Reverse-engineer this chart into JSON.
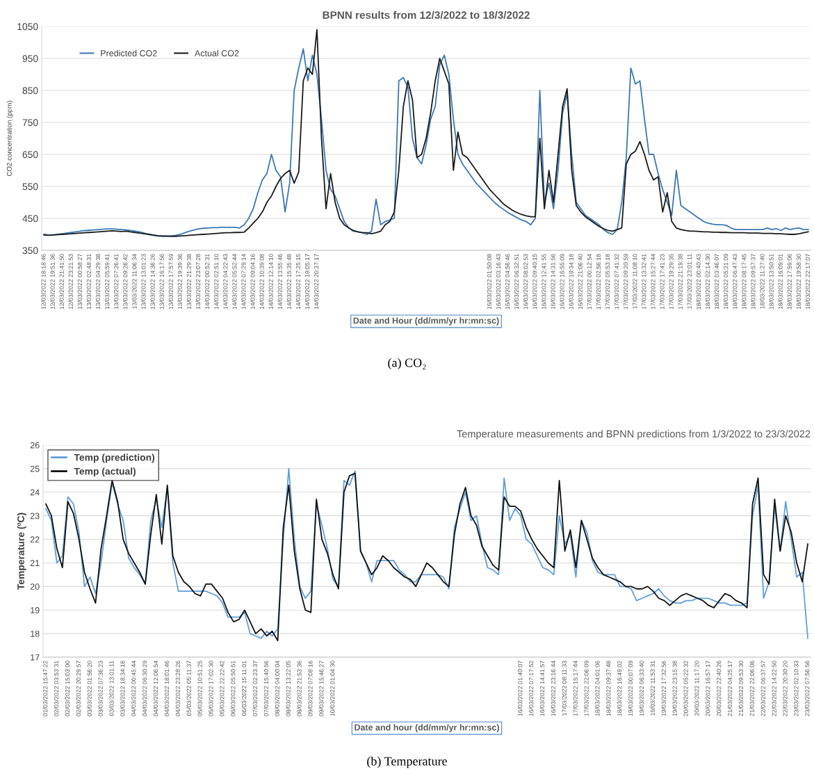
{
  "chart_data": [
    {
      "type": "line",
      "title": "BPNN results from 12/3/2022 to 18/3/2022",
      "xlabel": "Date and Hour (dd/mm/yr hr:mn:sc)",
      "ylabel": "CO2 concentration (ppm)",
      "categories": [
        "12/03/2022 18:18:46",
        null,
        "12/03/2022 19:51:36",
        null,
        "12/03/2022 21:41:50",
        null,
        "12/03/2022 23:21:53",
        null,
        "13/03/2022 00:58:27",
        null,
        "13/03/2022 02:48:31",
        null,
        "13/03/2022 04:29:38",
        null,
        "13/03/2022 05:59:41",
        null,
        "13/03/2022 07:26:41",
        null,
        "13/03/2022 09:26:42",
        null,
        "13/03/2022 11:06:34",
        null,
        "13/03/2022 13:01:23",
        null,
        "13/03/2022 14:36:26",
        null,
        "13/03/2022 16:17:56",
        null,
        "13/03/2022 17:57:59",
        null,
        "13/03/2022 19:39:36",
        null,
        "13/03/2022 21:29:38",
        null,
        "13/03/2022 23:07:28",
        null,
        "14/03/2022 00:52:31",
        null,
        "14/03/2022 02:51:10",
        null,
        "14/03/2022 04:22:43",
        null,
        "14/03/2022 05:52:44",
        null,
        "14/03/2022 07:29:14",
        null,
        "14/03/2022 09:04:16",
        null,
        "14/03/2022 10:39:08",
        null,
        "14/03/2022 12:14:10",
        null,
        "14/03/2022 13:55:46",
        null,
        "14/03/2022 15:35:48",
        null,
        "14/03/2022 17:25:15",
        null,
        "14/03/2022 19:05:17",
        null,
        "14/03/2022 20:37:17",
        null,
        null,
        null,
        null,
        null,
        null,
        null,
        null,
        null,
        null,
        null,
        null,
        null,
        null,
        null,
        null,
        null,
        null,
        null,
        null,
        null,
        null,
        null,
        null,
        null,
        null,
        null,
        null,
        null,
        null,
        null,
        null,
        null,
        null,
        null,
        null,
        null,
        "16/03/2022 01:50:08",
        null,
        "16/03/2022 03:16:43",
        null,
        "16/03/2022 04:56:46",
        null,
        "16/03/2022 06:32:51",
        null,
        "16/03/2022 08:02:53",
        null,
        "16/03/2022 09:40:15",
        null,
        "16/03/2022 12:41:55",
        null,
        "16/03/2022 14:31:56",
        null,
        "16/03/2022 16:55:09",
        null,
        "16/03/2022 19:34:18",
        null,
        "16/03/2022 21:06:40",
        null,
        "17/03/2022 00:12:54",
        null,
        "17/03/2022 02:56:18",
        null,
        "17/03/2022 05:53:18",
        null,
        "17/03/2022 07:41:32",
        null,
        "17/03/2022 09:20:59",
        null,
        "17/03/2022 11:08:10",
        null,
        "17/03/2022 13:32:41",
        null,
        "17/03/2022 15:27:44",
        null,
        "17/03/2022 17:41:23",
        null,
        "17/03/2022 19:29:35",
        null,
        "17/03/2022 21:19:38",
        null,
        "17/03/2022 23:01:11",
        null,
        "18/03/2022 00:40:43",
        null,
        "18/03/2022 02:14:30",
        null,
        "18/03/2022 03:46:07",
        null,
        "18/03/2022 05:21:09",
        null,
        "18/03/2022 06:47:43",
        null,
        "18/03/2022 08:17:45",
        null,
        "18/03/2022 09:57:37",
        null,
        "18/03/2022 11:27:40",
        null,
        "18/03/2022 13:50:51",
        null,
        "18/03/2022 16:09:01",
        null,
        "18/03/2022 17:59:06",
        null,
        "18/03/2022 19:58:30",
        null,
        "18/03/2022 22:17:07"
      ],
      "series": [
        {
          "name": "Predicted CO2",
          "color": "#3b78b5",
          "values": [
            400,
            398,
            398,
            400,
            402,
            404,
            406,
            408,
            410,
            412,
            413,
            414,
            415,
            416,
            417,
            417,
            416,
            415,
            414,
            412,
            410,
            408,
            404,
            400,
            397,
            395,
            394,
            394,
            395,
            397,
            400,
            405,
            410,
            414,
            417,
            419,
            420,
            421,
            421,
            422,
            422,
            422,
            422,
            420,
            430,
            450,
            480,
            530,
            570,
            590,
            650,
            600,
            580,
            470,
            560,
            850,
            920,
            980,
            880,
            960,
            900,
            760,
            600,
            540,
            520,
            480,
            440,
            420,
            410,
            408,
            405,
            400,
            410,
            510,
            430,
            440,
            445,
            450,
            880,
            890,
            860,
            700,
            640,
            620,
            680,
            760,
            800,
            930,
            960,
            900,
            760,
            650,
            620,
            600,
            580,
            560,
            545,
            530,
            515,
            500,
            488,
            478,
            468,
            460,
            452,
            445,
            440,
            430,
            450,
            850,
            500,
            560,
            480,
            600,
            780,
            840,
            650,
            500,
            480,
            460,
            450,
            440,
            430,
            415,
            405,
            400,
            415,
            500,
            640,
            920,
            870,
            880,
            760,
            650,
            650,
            590,
            540,
            500,
            460,
            600,
            490,
            480,
            470,
            460,
            450,
            440,
            435,
            432,
            430,
            430,
            428,
            420,
            415,
            415,
            415,
            415,
            415,
            415,
            415,
            420,
            415,
            418,
            412,
            420,
            415,
            418,
            420,
            415,
            415
          ]
        },
        {
          "name": "Actual CO2",
          "color": "#1a1a1a",
          "values": [
            398,
            397,
            398,
            399,
            400,
            401,
            402,
            403,
            404,
            405,
            406,
            407,
            408,
            409,
            410,
            411,
            410,
            409,
            410,
            408,
            406,
            404,
            402,
            400,
            398,
            396,
            395,
            395,
            394,
            394,
            395,
            396,
            397,
            398,
            399,
            400,
            401,
            402,
            403,
            404,
            405,
            405,
            406,
            406,
            407,
            420,
            435,
            450,
            470,
            500,
            520,
            550,
            575,
            590,
            600,
            560,
            595,
            880,
            920,
            900,
            1040,
            700,
            480,
            590,
            500,
            450,
            430,
            420,
            412,
            408,
            405,
            405,
            402,
            405,
            410,
            430,
            440,
            470,
            600,
            800,
            880,
            820,
            640,
            650,
            700,
            780,
            880,
            950,
            910,
            870,
            600,
            720,
            650,
            640,
            620,
            600,
            580,
            560,
            540,
            525,
            510,
            495,
            485,
            475,
            468,
            462,
            458,
            455,
            455,
            700,
            480,
            600,
            500,
            650,
            800,
            855,
            600,
            490,
            470,
            455,
            445,
            435,
            425,
            418,
            412,
            410,
            415,
            420,
            620,
            650,
            660,
            690,
            650,
            600,
            570,
            580,
            470,
            530,
            440,
            420,
            415,
            412,
            410,
            410,
            409,
            408,
            408,
            407,
            407,
            406,
            406,
            405,
            405,
            405,
            405,
            404,
            404,
            404,
            403,
            403,
            403,
            402,
            402,
            401,
            400,
            400,
            402,
            405,
            408
          ]
        }
      ],
      "ylim": [
        350,
        1050
      ],
      "yticks": [
        350,
        450,
        550,
        650,
        750,
        850,
        950,
        1050
      ],
      "grid": "y",
      "legend": "top left",
      "annotations": [
        "(a) CO₂"
      ]
    },
    {
      "type": "line",
      "title": "Temperature measurements and BPNN predictions from 1/3/2022 to 23/3/2022",
      "xlabel": "Date and hour (dd/mm/yr hr:mn:sc)",
      "ylabel": "Temperature (ºC)",
      "categories": [
        "01/03/2022 15:47:22",
        null,
        "02/03/2022 03:53:31",
        null,
        "02/03/2022 15:03:00",
        null,
        "02/03/2022 20:29:57",
        null,
        "03/03/2022 01:56:20",
        null,
        "03/03/2022 07:36:23",
        null,
        "03/03/2022 13:01:11",
        null,
        "03/03/2022 18:34:18",
        null,
        "04/03/2022 00:45:44",
        null,
        "04/03/2022 06:30:29",
        null,
        "04/03/2022 12:06:54",
        null,
        "04/03/2022 18:01:46",
        null,
        "04/03/2022 23:28:26",
        null,
        "05/03/2022 05:11:37",
        null,
        "05/03/2022 10:51:25",
        null,
        "05/03/2022 17:02:30",
        null,
        "05/03/2022 22:22:42",
        null,
        "06/03/2022 05:50:51",
        null,
        "06/03/2022 15:11:01",
        null,
        "07/03/2022 02:23:37",
        null,
        "07/03/2022 15:40:56",
        null,
        "08/03/2022 04:00:04",
        null,
        "08/03/2022 13:22:05",
        null,
        "08/03/2022 21:53:36",
        null,
        "09/03/2022 07:08:16",
        null,
        "09/03/2022 15:46:27",
        null,
        "10/03/2022 01:04:30",
        null,
        null,
        null,
        null,
        null,
        null,
        null,
        null,
        null,
        null,
        null,
        null,
        null,
        null,
        null,
        null,
        null,
        null,
        null,
        null,
        null,
        null,
        null,
        null,
        null,
        null,
        null,
        null,
        null,
        null,
        null,
        null,
        null,
        "16/03/2022 01:40:07",
        null,
        "16/03/2022 07:17:52",
        null,
        "16/03/2022 14:41:57",
        null,
        "16/03/2022 23:16:44",
        null,
        "17/03/2022 08:11:33",
        null,
        "17/03/2022 15:17:44",
        null,
        "17/03/2022 22:06:09",
        null,
        "18/03/2022 04:01:06",
        null,
        "18/03/2022 09:37:48",
        null,
        "18/03/2022 16:49:02",
        null,
        "19/03/2022 00:07:09",
        null,
        "19/03/2022 06:33:40",
        null,
        "19/03/2022 11:53:31",
        null,
        "19/03/2022 17:32:56",
        null,
        "19/03/2022 23:15:38",
        null,
        "20/03/2022 05:22:32",
        null,
        "20/03/2022 11:17:20",
        null,
        "20/03/2022 16:57:17",
        null,
        "20/03/2022 22:40:26",
        null,
        "21/03/2022 04:25:17",
        null,
        "21/03/2022 09:53:30",
        null,
        "21/03/2022 22:06:06",
        null,
        "22/03/2022 06:37:57",
        null,
        "22/03/2022 14:22:50",
        null,
        "22/03/2022 20:30:20",
        null,
        "23/03/2022 02:10:33",
        null,
        "23/03/2022 07:56:56"
      ],
      "series": [
        {
          "name": "Temp (prediction)",
          "color": "#5f9fd6",
          "values": [
            23.3,
            22.8,
            21.0,
            21.3,
            23.8,
            23.5,
            22.3,
            20.0,
            20.4,
            19.7,
            21.0,
            22.8,
            24.4,
            23.5,
            22.8,
            21.2,
            20.8,
            20.5,
            20.1,
            22.8,
            23.7,
            22.5,
            24.2,
            21.0,
            19.8,
            19.8,
            19.8,
            19.8,
            19.8,
            19.8,
            19.7,
            19.6,
            19.3,
            18.7,
            18.7,
            18.7,
            18.9,
            18.0,
            17.9,
            17.8,
            18.1,
            17.9,
            18.2,
            22.0,
            25.0,
            22.0,
            20.0,
            19.5,
            19.8,
            23.5,
            22.6,
            21.6,
            20.3,
            20.0,
            24.5,
            24.3,
            24.9,
            21.5,
            21.0,
            20.2,
            21.1,
            21.1,
            21.1,
            21.1,
            20.7,
            20.5,
            20.2,
            20.2,
            20.5,
            20.5,
            20.5,
            20.5,
            20.4,
            19.9,
            22.5,
            23.3,
            24.0,
            22.8,
            23.0,
            21.8,
            20.8,
            20.7,
            20.5,
            24.6,
            22.8,
            23.3,
            23.0,
            22.0,
            21.8,
            21.3,
            20.8,
            20.7,
            20.5,
            23.0,
            21.8,
            22.2,
            20.4,
            22.8,
            22.3,
            21.1,
            20.6,
            20.5,
            20.5,
            20.5,
            20.0,
            20.0,
            19.9,
            19.4,
            19.5,
            19.6,
            19.7,
            19.9,
            19.6,
            19.4,
            19.3,
            19.3,
            19.4,
            19.4,
            19.5,
            19.5,
            19.5,
            19.4,
            19.3,
            19.3,
            19.2,
            19.2,
            19.2,
            19.3,
            23.0,
            24.3,
            19.5,
            20.2,
            23.4,
            21.5,
            23.6,
            22.0,
            20.4,
            20.6,
            17.8
          ]
        },
        {
          "name": "Temp (actual)",
          "color": "#111111",
          "values": [
            23.5,
            23.0,
            21.6,
            20.8,
            23.6,
            23.1,
            22.0,
            20.6,
            19.9,
            19.3,
            21.6,
            23.0,
            24.5,
            23.6,
            22.0,
            21.4,
            21.0,
            20.6,
            20.1,
            22.2,
            23.9,
            21.8,
            24.3,
            21.3,
            20.6,
            20.2,
            20.0,
            19.7,
            19.6,
            20.1,
            20.1,
            19.8,
            19.5,
            18.9,
            18.5,
            18.6,
            19.0,
            18.5,
            18.0,
            18.2,
            17.9,
            18.1,
            17.7,
            22.5,
            24.3,
            21.5,
            19.9,
            19.0,
            18.9,
            23.7,
            22.0,
            21.4,
            20.5,
            19.9,
            24.0,
            24.7,
            24.8,
            21.5,
            21.0,
            20.5,
            20.8,
            21.3,
            21.1,
            20.8,
            20.6,
            20.4,
            20.3,
            20.0,
            20.5,
            21.0,
            20.8,
            20.5,
            20.2,
            20.0,
            22.2,
            23.5,
            24.2,
            23.0,
            22.6,
            21.7,
            21.3,
            20.9,
            20.7,
            23.8,
            23.4,
            23.4,
            23.2,
            22.5,
            22.0,
            21.6,
            21.3,
            21.0,
            20.8,
            24.5,
            21.5,
            22.4,
            20.8,
            22.8,
            22.0,
            21.2,
            20.8,
            20.5,
            20.4,
            20.3,
            20.2,
            20.0,
            20.0,
            19.9,
            19.9,
            20.0,
            19.8,
            19.5,
            19.4,
            19.2,
            19.4,
            19.6,
            19.7,
            19.6,
            19.5,
            19.4,
            19.2,
            19.1,
            19.4,
            19.7,
            19.6,
            19.4,
            19.3,
            19.1,
            23.5,
            24.6,
            20.5,
            20.1,
            23.7,
            21.5,
            23.0,
            22.3,
            21.0,
            20.2,
            21.8
          ]
        }
      ],
      "ylim": [
        17,
        26
      ],
      "yticks": [
        17,
        18,
        19,
        20,
        21,
        22,
        23,
        24,
        25,
        26
      ],
      "grid": "y",
      "legend": "top left",
      "annotations": [
        "(b) Temperature"
      ]
    }
  ]
}
